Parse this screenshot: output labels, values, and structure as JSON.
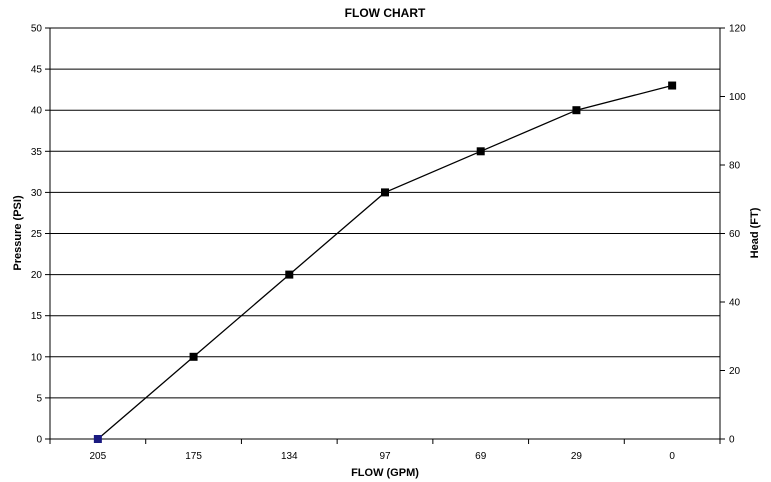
{
  "chart_data": {
    "type": "line",
    "title": "FLOW CHART",
    "xlabel": "FLOW (GPM)",
    "ylabel": "Pressure (PSI)",
    "y2label": "Head (FT)",
    "categories": [
      "205",
      "175",
      "134",
      "97",
      "69",
      "29",
      "0"
    ],
    "series": [
      {
        "values": [
          0,
          10,
          20,
          30,
          35,
          40,
          43
        ]
      }
    ],
    "ylim": [
      0,
      50
    ],
    "yticks": [
      0,
      5,
      10,
      15,
      20,
      25,
      30,
      35,
      40,
      45,
      50
    ],
    "y2lim": [
      0,
      120
    ],
    "y2ticks": [
      0,
      20,
      40,
      60,
      80,
      100,
      120
    ],
    "grid": true,
    "legend": "none",
    "colors": {
      "line": "#000000",
      "marker": "#000000",
      "first_marker": "#1a1a80"
    }
  }
}
